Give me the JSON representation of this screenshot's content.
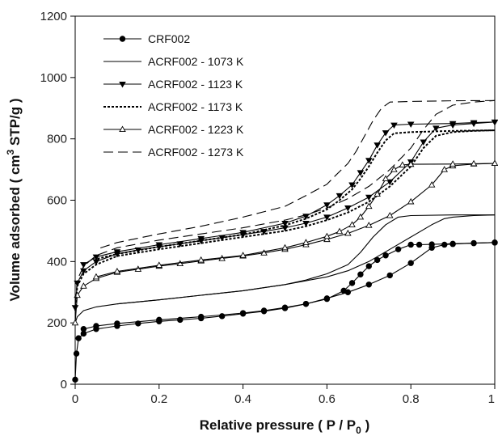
{
  "chart_data": {
    "type": "line",
    "title": "",
    "xlabel": "Relative pressure ( P / P",
    "xlabel_sub": "0",
    "xlabel_tail": " )",
    "ylabel": "Volume adsorbed ( cm",
    "ylabel_sup": "3",
    "ylabel_tail": " STP/g )",
    "xlim": [
      0,
      1
    ],
    "ylim": [
      0,
      1200
    ],
    "xticks": [
      0,
      0.2,
      0.4,
      0.6,
      0.8,
      1
    ],
    "xtick_labels": [
      "0",
      "0.2",
      "0.4",
      "0.6",
      "0.8",
      "1"
    ],
    "yticks": [
      0,
      200,
      400,
      600,
      800,
      1000,
      1200
    ],
    "ytick_labels": [
      "0",
      "200",
      "400",
      "600",
      "800",
      "1000",
      "1200"
    ],
    "grid": false,
    "legend_position": "top-left",
    "series": [
      {
        "name": "CRF002",
        "style": "solid",
        "marker": "filled-circle",
        "color": "#000000",
        "adsorption": [
          [
            0.0,
            15
          ],
          [
            0.003,
            100
          ],
          [
            0.008,
            150
          ],
          [
            0.02,
            165
          ],
          [
            0.05,
            180
          ],
          [
            0.1,
            190
          ],
          [
            0.15,
            198
          ],
          [
            0.2,
            205
          ],
          [
            0.25,
            210
          ],
          [
            0.3,
            215
          ],
          [
            0.35,
            222
          ],
          [
            0.4,
            230
          ],
          [
            0.45,
            238
          ],
          [
            0.5,
            248
          ],
          [
            0.55,
            262
          ],
          [
            0.6,
            280
          ],
          [
            0.65,
            300
          ],
          [
            0.7,
            325
          ],
          [
            0.75,
            355
          ],
          [
            0.8,
            395
          ],
          [
            0.85,
            445
          ],
          [
            0.88,
            455
          ],
          [
            0.9,
            457
          ],
          [
            0.95,
            460
          ],
          [
            1.0,
            462
          ]
        ],
        "desorption": [
          [
            1.0,
            462
          ],
          [
            0.95,
            460
          ],
          [
            0.9,
            458
          ],
          [
            0.85,
            456
          ],
          [
            0.82,
            455
          ],
          [
            0.8,
            455
          ],
          [
            0.77,
            440
          ],
          [
            0.74,
            420
          ],
          [
            0.72,
            405
          ],
          [
            0.7,
            385
          ],
          [
            0.68,
            358
          ],
          [
            0.66,
            330
          ],
          [
            0.64,
            305
          ],
          [
            0.6,
            278
          ],
          [
            0.55,
            262
          ],
          [
            0.5,
            250
          ],
          [
            0.45,
            240
          ],
          [
            0.4,
            232
          ],
          [
            0.3,
            220
          ],
          [
            0.2,
            210
          ],
          [
            0.1,
            198
          ],
          [
            0.05,
            190
          ],
          [
            0.02,
            180
          ]
        ]
      },
      {
        "name": "ACRF002 - 1073 K",
        "style": "solid",
        "marker": "none",
        "color": "#000000",
        "adsorption": [
          [
            0.0,
            200
          ],
          [
            0.005,
            220
          ],
          [
            0.02,
            240
          ],
          [
            0.05,
            252
          ],
          [
            0.1,
            262
          ],
          [
            0.2,
            275
          ],
          [
            0.3,
            290
          ],
          [
            0.4,
            305
          ],
          [
            0.5,
            325
          ],
          [
            0.6,
            350
          ],
          [
            0.65,
            370
          ],
          [
            0.7,
            400
          ],
          [
            0.75,
            440
          ],
          [
            0.8,
            480
          ],
          [
            0.85,
            520
          ],
          [
            0.88,
            540
          ],
          [
            0.9,
            545
          ],
          [
            0.95,
            550
          ],
          [
            1.0,
            552
          ]
        ],
        "desorption": [
          [
            1.0,
            552
          ],
          [
            0.9,
            552
          ],
          [
            0.8,
            550
          ],
          [
            0.77,
            545
          ],
          [
            0.74,
            520
          ],
          [
            0.71,
            480
          ],
          [
            0.68,
            430
          ],
          [
            0.65,
            390
          ],
          [
            0.6,
            360
          ],
          [
            0.55,
            340
          ],
          [
            0.5,
            325
          ],
          [
            0.4,
            305
          ],
          [
            0.3,
            290
          ],
          [
            0.2,
            275
          ],
          [
            0.1,
            262
          ]
        ]
      },
      {
        "name": "ACRF002 - 1123 K",
        "style": "solid",
        "marker": "filled-triangle-down",
        "color": "#000000",
        "adsorption": [
          [
            0.0,
            250
          ],
          [
            0.005,
            330
          ],
          [
            0.02,
            370
          ],
          [
            0.05,
            400
          ],
          [
            0.1,
            425
          ],
          [
            0.15,
            438
          ],
          [
            0.2,
            448
          ],
          [
            0.25,
            458
          ],
          [
            0.3,
            468
          ],
          [
            0.35,
            478
          ],
          [
            0.4,
            488
          ],
          [
            0.45,
            498
          ],
          [
            0.5,
            510
          ],
          [
            0.55,
            525
          ],
          [
            0.6,
            545
          ],
          [
            0.65,
            575
          ],
          [
            0.7,
            610
          ],
          [
            0.75,
            660
          ],
          [
            0.8,
            725
          ],
          [
            0.83,
            790
          ],
          [
            0.86,
            835
          ],
          [
            0.9,
            845
          ],
          [
            0.95,
            850
          ],
          [
            1.0,
            855
          ]
        ],
        "desorption": [
          [
            1.0,
            855
          ],
          [
            0.95,
            853
          ],
          [
            0.9,
            850
          ],
          [
            0.8,
            848
          ],
          [
            0.76,
            845
          ],
          [
            0.74,
            820
          ],
          [
            0.72,
            780
          ],
          [
            0.7,
            730
          ],
          [
            0.68,
            690
          ],
          [
            0.66,
            650
          ],
          [
            0.63,
            615
          ],
          [
            0.6,
            585
          ],
          [
            0.55,
            548
          ],
          [
            0.5,
            525
          ],
          [
            0.4,
            495
          ],
          [
            0.3,
            475
          ],
          [
            0.2,
            455
          ],
          [
            0.1,
            432
          ],
          [
            0.05,
            415
          ],
          [
            0.02,
            390
          ]
        ]
      },
      {
        "name": "ACRF002 - 1173 K",
        "style": "dotted",
        "marker": "none",
        "color": "#000000",
        "adsorption": [
          [
            0.0,
            240
          ],
          [
            0.005,
            320
          ],
          [
            0.02,
            360
          ],
          [
            0.05,
            390
          ],
          [
            0.1,
            418
          ],
          [
            0.2,
            440
          ],
          [
            0.3,
            460
          ],
          [
            0.4,
            480
          ],
          [
            0.5,
            500
          ],
          [
            0.55,
            515
          ],
          [
            0.6,
            535
          ],
          [
            0.65,
            560
          ],
          [
            0.7,
            595
          ],
          [
            0.75,
            645
          ],
          [
            0.8,
            710
          ],
          [
            0.83,
            770
          ],
          [
            0.86,
            810
          ],
          [
            0.9,
            822
          ],
          [
            0.95,
            826
          ],
          [
            1.0,
            828
          ]
        ],
        "desorption": [
          [
            1.0,
            828
          ],
          [
            0.9,
            826
          ],
          [
            0.8,
            822
          ],
          [
            0.76,
            818
          ],
          [
            0.74,
            795
          ],
          [
            0.72,
            755
          ],
          [
            0.7,
            710
          ],
          [
            0.68,
            670
          ],
          [
            0.66,
            635
          ],
          [
            0.63,
            600
          ],
          [
            0.6,
            570
          ],
          [
            0.55,
            540
          ],
          [
            0.5,
            518
          ],
          [
            0.4,
            488
          ],
          [
            0.3,
            468
          ],
          [
            0.2,
            448
          ],
          [
            0.1,
            425
          ],
          [
            0.05,
            408
          ]
        ]
      },
      {
        "name": "ACRF002 - 1223 K",
        "style": "solid",
        "marker": "open-triangle-up",
        "color": "#000000",
        "adsorption": [
          [
            0.0,
            200
          ],
          [
            0.005,
            290
          ],
          [
            0.02,
            320
          ],
          [
            0.05,
            345
          ],
          [
            0.1,
            365
          ],
          [
            0.15,
            375
          ],
          [
            0.2,
            385
          ],
          [
            0.25,
            393
          ],
          [
            0.3,
            402
          ],
          [
            0.35,
            410
          ],
          [
            0.4,
            418
          ],
          [
            0.45,
            428
          ],
          [
            0.5,
            440
          ],
          [
            0.55,
            455
          ],
          [
            0.6,
            472
          ],
          [
            0.65,
            492
          ],
          [
            0.7,
            518
          ],
          [
            0.75,
            550
          ],
          [
            0.8,
            595
          ],
          [
            0.85,
            650
          ],
          [
            0.88,
            700
          ],
          [
            0.9,
            712
          ],
          [
            0.95,
            718
          ],
          [
            1.0,
            720
          ]
        ],
        "desorption": [
          [
            1.0,
            720
          ],
          [
            0.95,
            719
          ],
          [
            0.9,
            718
          ],
          [
            0.8,
            717
          ],
          [
            0.78,
            715
          ],
          [
            0.76,
            700
          ],
          [
            0.74,
            670
          ],
          [
            0.72,
            620
          ],
          [
            0.7,
            580
          ],
          [
            0.68,
            545
          ],
          [
            0.66,
            520
          ],
          [
            0.63,
            498
          ],
          [
            0.6,
            482
          ],
          [
            0.55,
            462
          ],
          [
            0.5,
            445
          ],
          [
            0.4,
            420
          ],
          [
            0.3,
            405
          ],
          [
            0.2,
            388
          ],
          [
            0.1,
            368
          ],
          [
            0.05,
            350
          ]
        ]
      },
      {
        "name": "ACRF002 - 1273 K",
        "style": "dashed",
        "marker": "none",
        "color": "#000000",
        "adsorption": [
          [
            0.0,
            260
          ],
          [
            0.005,
            340
          ],
          [
            0.02,
            385
          ],
          [
            0.05,
            420
          ],
          [
            0.1,
            445
          ],
          [
            0.2,
            470
          ],
          [
            0.3,
            490
          ],
          [
            0.4,
            510
          ],
          [
            0.5,
            535
          ],
          [
            0.55,
            552
          ],
          [
            0.6,
            575
          ],
          [
            0.65,
            605
          ],
          [
            0.7,
            645
          ],
          [
            0.75,
            700
          ],
          [
            0.8,
            770
          ],
          [
            0.83,
            830
          ],
          [
            0.86,
            880
          ],
          [
            0.9,
            910
          ],
          [
            0.95,
            920
          ],
          [
            1.0,
            925
          ]
        ],
        "desorption": [
          [
            1.0,
            925
          ],
          [
            0.9,
            924
          ],
          [
            0.8,
            922
          ],
          [
            0.75,
            920
          ],
          [
            0.73,
            900
          ],
          [
            0.71,
            860
          ],
          [
            0.69,
            810
          ],
          [
            0.67,
            760
          ],
          [
            0.65,
            720
          ],
          [
            0.62,
            680
          ],
          [
            0.6,
            652
          ],
          [
            0.55,
            615
          ],
          [
            0.5,
            580
          ],
          [
            0.4,
            545
          ],
          [
            0.3,
            515
          ],
          [
            0.2,
            490
          ],
          [
            0.1,
            462
          ],
          [
            0.05,
            440
          ]
        ]
      }
    ]
  }
}
